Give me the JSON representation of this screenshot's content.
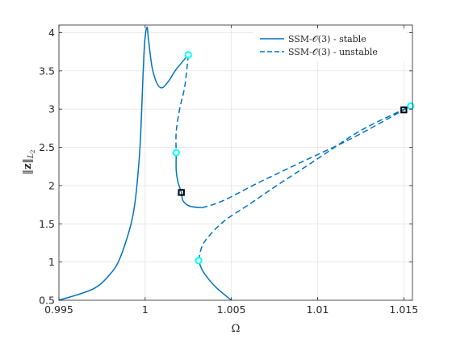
{
  "chart_data": {
    "type": "line",
    "xlabel": "Ω",
    "ylabel": "||z||_{L2}",
    "xlim": [
      0.995,
      1.0155
    ],
    "ylim": [
      0.5,
      4.1
    ],
    "xticks": [
      0.995,
      1,
      1.005,
      1.01,
      1.015
    ],
    "xtick_labels": [
      "0.995",
      "1",
      "1.005",
      "1.01",
      "1.015"
    ],
    "yticks": [
      0.5,
      1,
      1.5,
      2,
      2.5,
      3,
      3.5,
      4
    ],
    "ytick_labels": [
      "0.5",
      "1",
      "1.5",
      "2",
      "2.5",
      "3",
      "3.5",
      "4"
    ],
    "grid": true,
    "legend_position": "top-right",
    "colors": {
      "line": "#0072BD",
      "marker_cyan": "#00FFFF",
      "marker_black": "#000000"
    },
    "series": [
      {
        "name": "SSM-𝒪(3) - stable",
        "style": "solid",
        "segments": [
          [
            [
              0.995,
              0.5
            ],
            [
              0.997,
              0.65
            ],
            [
              0.998,
              0.85
            ],
            [
              0.9985,
              1.03
            ],
            [
              0.999,
              1.35
            ],
            [
              0.9993,
              1.62
            ],
            [
              0.9995,
              1.95
            ],
            [
              0.9997,
              2.5
            ],
            [
              0.9998,
              3.0
            ],
            [
              0.99995,
              3.8
            ],
            [
              1.0001,
              4.07
            ],
            [
              1.0002,
              3.9
            ],
            [
              1.0004,
              3.55
            ],
            [
              1.0007,
              3.33
            ],
            [
              1.001,
              3.28
            ],
            [
              1.0014,
              3.38
            ],
            [
              1.0018,
              3.52
            ],
            [
              1.0025,
              3.71
            ]
          ],
          [
            [
              1.0018,
              2.43
            ],
            [
              1.0018,
              2.2
            ],
            [
              1.0019,
              2.05
            ],
            [
              1.0021,
              1.91
            ],
            [
              1.0022,
              1.8
            ],
            [
              1.0026,
              1.73
            ],
            [
              1.0033,
              1.71
            ]
          ],
          [
            [
              1.0031,
              1.02
            ],
            [
              1.0033,
              0.9
            ],
            [
              1.0037,
              0.77
            ],
            [
              1.0042,
              0.65
            ],
            [
              1.005,
              0.5
            ]
          ],
          [
            [
              1.015,
              2.99
            ],
            [
              1.0154,
              3.04
            ]
          ]
        ]
      },
      {
        "name": "SSM-𝒪(3) - unstable",
        "style": "dashed",
        "segments": [
          [
            [
              1.0025,
              3.71
            ],
            [
              1.0023,
              3.3
            ],
            [
              1.002,
              3.0
            ],
            [
              1.0018,
              2.7
            ],
            [
              1.0018,
              2.43
            ]
          ],
          [
            [
              1.0033,
              1.71
            ],
            [
              1.0045,
              1.8
            ],
            [
              1.0065,
              2.03
            ],
            [
              1.009,
              2.3
            ],
            [
              1.012,
              2.62
            ],
            [
              1.015,
              2.99
            ]
          ],
          [
            [
              1.0031,
              1.02
            ],
            [
              1.0034,
              1.25
            ],
            [
              1.0045,
              1.52
            ],
            [
              1.006,
              1.75
            ],
            [
              1.0075,
              1.98
            ],
            [
              1.01,
              2.35
            ],
            [
              1.0125,
              2.72
            ],
            [
              1.0154,
              3.04
            ]
          ]
        ]
      }
    ],
    "markers": [
      {
        "kind": "cyan-circle",
        "x": 1.0025,
        "y": 3.71
      },
      {
        "kind": "cyan-circle",
        "x": 1.0018,
        "y": 2.43
      },
      {
        "kind": "cyan-circle",
        "x": 1.0031,
        "y": 1.02
      },
      {
        "kind": "cyan-circle",
        "x": 1.0154,
        "y": 3.04
      },
      {
        "kind": "black-square",
        "x": 1.0021,
        "y": 1.91
      },
      {
        "kind": "black-square",
        "x": 1.015,
        "y": 2.99
      }
    ]
  }
}
